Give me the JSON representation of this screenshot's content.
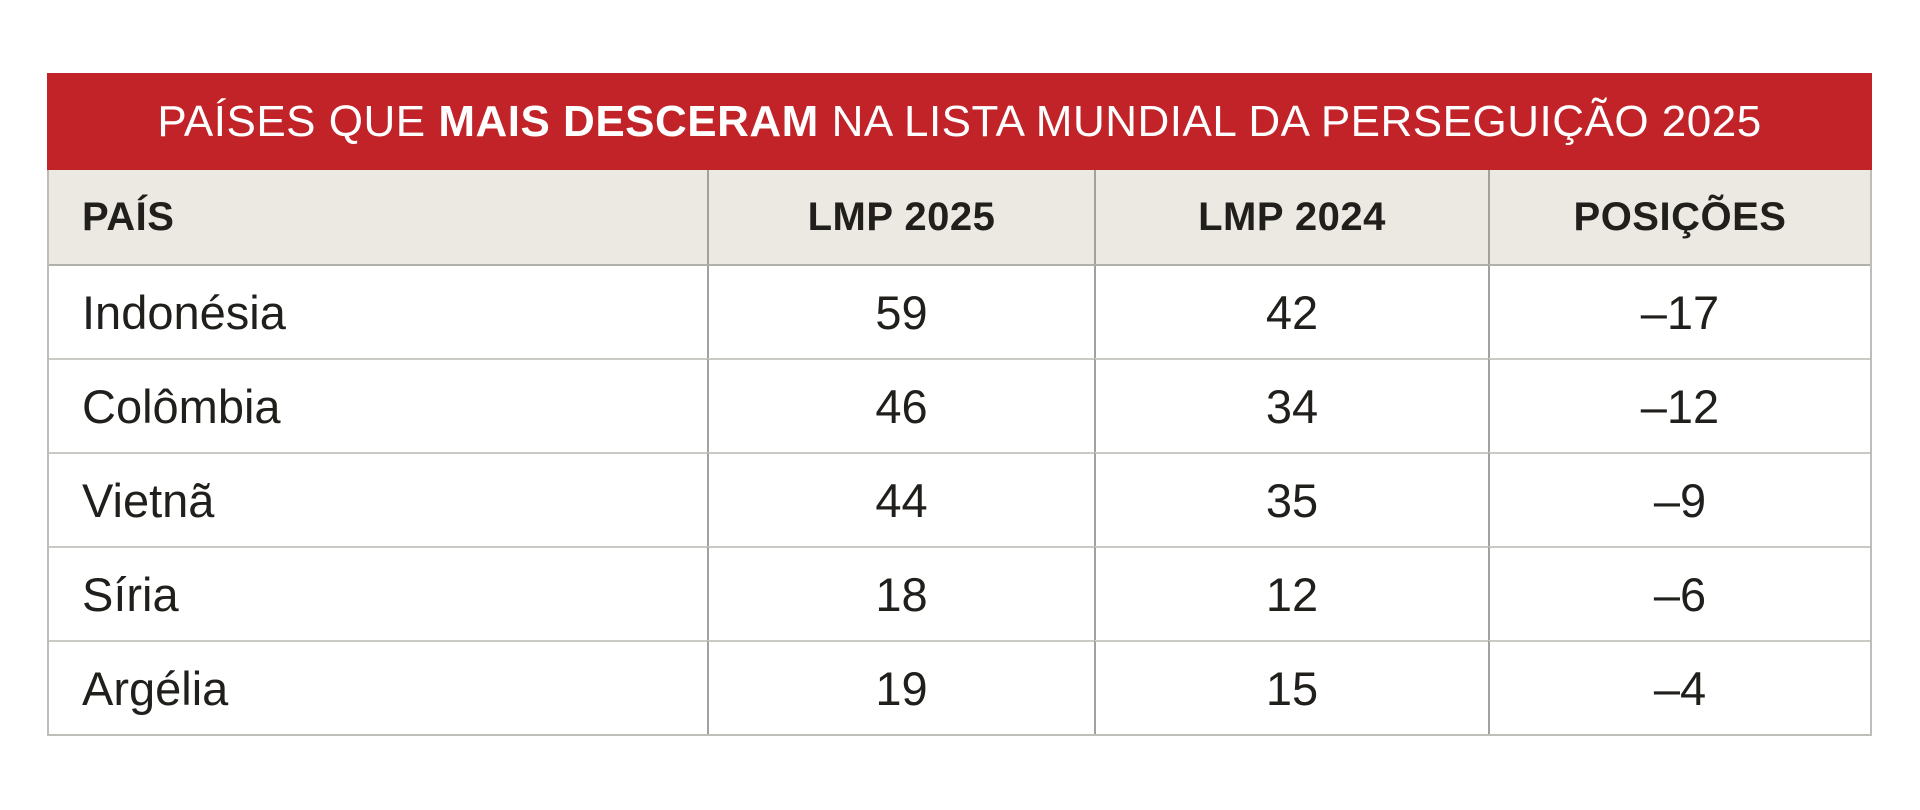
{
  "chart_data": {
    "type": "table",
    "title": "PAÍSES QUE MAIS DESCERAM NA LISTA MUNDIAL DA PERSEGUIÇÃO 2025",
    "columns": [
      "PAÍS",
      "LMP 2025",
      "LMP 2024",
      "POSIÇÕES"
    ],
    "rows": [
      [
        "Indonésia",
        59,
        42,
        -17
      ],
      [
        "Colômbia",
        46,
        34,
        -12
      ],
      [
        "Vietnã",
        44,
        35,
        -9
      ],
      [
        "Síria",
        18,
        12,
        -6
      ],
      [
        "Argélia",
        19,
        15,
        -4
      ]
    ]
  },
  "title": {
    "prefix": "PAÍSES QUE ",
    "bold": "MAIS DESCERAM",
    "suffix": " NA LISTA MUNDIAL DA PERSEGUIÇÃO 2025"
  },
  "header": {
    "col0": "PAÍS",
    "col1": "LMP 2025",
    "col2": "LMP 2024",
    "col3": "POSIÇÕES"
  },
  "rows": [
    {
      "country": "Indonésia",
      "lmp2025": "59",
      "lmp2024": "42",
      "positions": "–17"
    },
    {
      "country": "Colômbia",
      "lmp2025": "46",
      "lmp2024": "34",
      "positions": "–12"
    },
    {
      "country": "Vietnã",
      "lmp2025": "44",
      "lmp2024": "35",
      "positions": "–9"
    },
    {
      "country": "Síria",
      "lmp2025": "18",
      "lmp2024": "12",
      "positions": "–6"
    },
    {
      "country": "Argélia",
      "lmp2025": "19",
      "lmp2024": "15",
      "positions": "–4"
    }
  ],
  "colors": {
    "band_red": "#c22328",
    "header_beige": "#ece8e2",
    "divider_vertical": "#a3a09d",
    "divider_horizontal": "#cbc9c6",
    "header_rule": "#b2b0ad",
    "outer_border": "#bfbdba",
    "text": "#211f1c"
  }
}
